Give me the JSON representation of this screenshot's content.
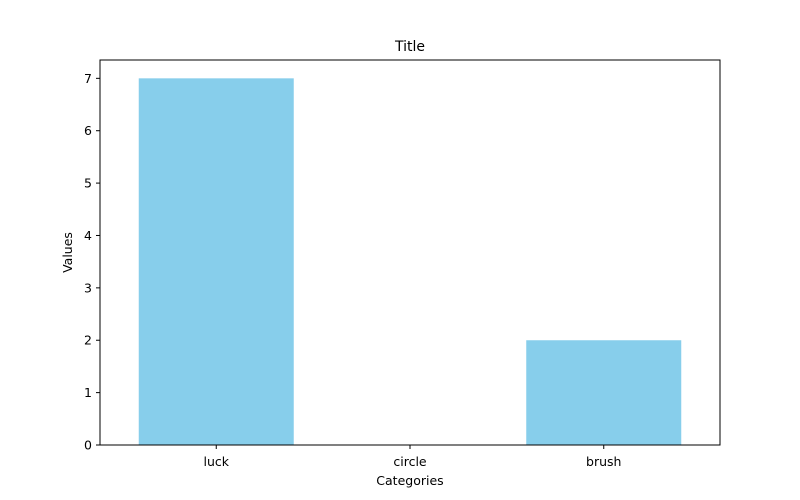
{
  "chart_data": {
    "type": "bar",
    "title": "Title",
    "xlabel": "Categories",
    "ylabel": "Values",
    "categories": [
      "luck",
      "circle",
      "brush"
    ],
    "values": [
      7,
      0,
      2
    ],
    "ylim": [
      0,
      7.35
    ],
    "yticks": [
      "0",
      "1",
      "2",
      "3",
      "4",
      "5",
      "6",
      "7"
    ],
    "bar_color": "#87CEEB",
    "grid": false,
    "legend": "none"
  }
}
